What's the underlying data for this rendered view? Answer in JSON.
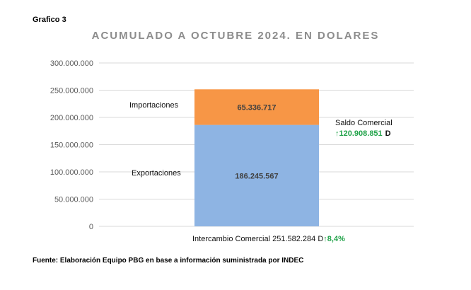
{
  "caption": "Grafico 3",
  "source": "Fuente: Elaboración Equipo PBG en base a información suministrada por INDEC",
  "saldo": {
    "label": "Saldo Comercial",
    "arrow": "↑",
    "value": "120.908.851",
    "currency": "D"
  },
  "intercambio": {
    "label": "Intercambio Comercial",
    "value": "251.582.284",
    "currency": "D",
    "arrow": "↑",
    "pct": "8,4%"
  },
  "colors": {
    "exportaciones": "#8eb4e3",
    "importaciones": "#f79646",
    "positive": "#22a34a",
    "grid": "#d9d9d9"
  },
  "chart_data": {
    "type": "bar",
    "stacked": true,
    "title": "ACUMULADO A OCTUBRE 2024. EN DOLARES",
    "categories": [
      ""
    ],
    "series": [
      {
        "name": "Exportaciones",
        "values": [
          186245567
        ],
        "label": "186.245.567"
      },
      {
        "name": "Importaciones",
        "values": [
          65336717
        ],
        "label": "65.336.717"
      }
    ],
    "ylim": [
      0,
      300000000
    ],
    "yticks": [
      {
        "value": 0,
        "label": "0"
      },
      {
        "value": 50000000,
        "label": "50.000.000"
      },
      {
        "value": 100000000,
        "label": "100.000.000"
      },
      {
        "value": 150000000,
        "label": "150.000.000"
      },
      {
        "value": 200000000,
        "label": "200.000.000"
      },
      {
        "value": 250000000,
        "label": "250.000.000"
      },
      {
        "value": 300000000,
        "label": "300.000.000"
      }
    ],
    "grid": true,
    "legend": "none"
  }
}
